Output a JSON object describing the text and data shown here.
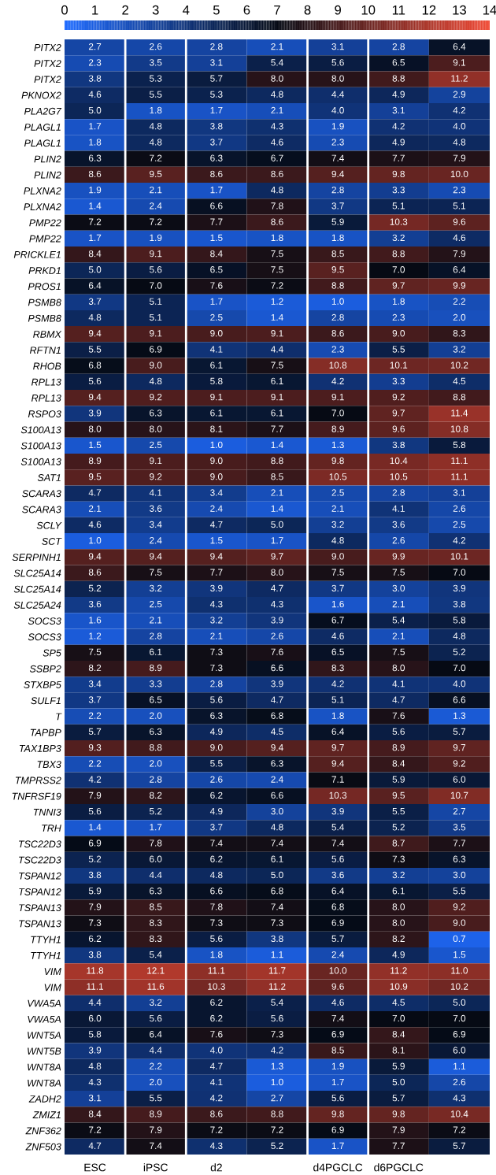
{
  "chart_data": {
    "type": "heatmap",
    "categories": [
      "ESC",
      "iPSC",
      "d2",
      null,
      "d4PGCLC",
      "d6PGCLC",
      null
    ],
    "clim": [
      0,
      14
    ],
    "cticks": [
      0,
      1,
      2,
      3,
      4,
      5,
      6,
      7,
      8,
      9,
      10,
      11,
      12,
      13,
      14
    ],
    "y_categories": [
      "PITX2",
      "PITX2",
      "PITX2",
      "PKNOX2",
      "PLA2G7",
      "PLAGL1",
      "PLAGL1",
      "PLIN2",
      "PLIN2",
      "PLXNA2",
      "PLXNA2",
      "PMP22",
      "PMP22",
      "PRICKLE1",
      "PRKD1",
      "PROS1",
      "PSMB8",
      "PSMB8",
      "RBMX",
      "RFTN1",
      "RHOB",
      "RPL13",
      "RPL13",
      "RSPO3",
      "S100A13",
      "S100A13",
      "S100A13",
      "SAT1",
      "SCARA3",
      "SCARA3",
      "SCLY",
      "SCT",
      "SERPINH1",
      "SLC25A14",
      "SLC25A14",
      "SLC25A24",
      "SOCS3",
      "SOCS3",
      "SP5",
      "SSBP2",
      "STXBP5",
      "SULF1",
      "T",
      "TAPBP",
      "TAX1BP3",
      "TBX3",
      "TMPRSS2",
      "TNFRSF19",
      "TNNI3",
      "TRH",
      "TSC22D3",
      "TSC22D3",
      "TSPAN12",
      "TSPAN12",
      "TSPAN13",
      "TSPAN13",
      "TTYH1",
      "TTYH1",
      "VIM",
      "VIM",
      "VWA5A",
      "VWA5A",
      "WNT5A",
      "WNT5B",
      "WNT8A",
      "WNT8A",
      "ZADH2",
      "ZMIZ1",
      "ZNF362",
      "ZNF503"
    ],
    "cells": [
      [
        2.7,
        2.6,
        2.8,
        2.1,
        3.1,
        2.8,
        6.4
      ],
      [
        2.3,
        3.5,
        3.1,
        5.4,
        5.6,
        6.5,
        9.1
      ],
      [
        3.8,
        5.3,
        5.7,
        8.0,
        8.0,
        8.8,
        11.2
      ],
      [
        4.6,
        5.5,
        5.3,
        4.8,
        4.4,
        4.9,
        2.9
      ],
      [
        5.0,
        1.8,
        1.7,
        2.1,
        4.0,
        3.1,
        4.2
      ],
      [
        1.7,
        4.8,
        3.8,
        4.3,
        1.9,
        4.2,
        4.0
      ],
      [
        1.8,
        4.8,
        3.7,
        4.6,
        2.3,
        4.9,
        4.8
      ],
      [
        6.3,
        7.2,
        6.3,
        6.7,
        7.4,
        7.7,
        7.9
      ],
      [
        8.6,
        9.5,
        8.6,
        8.6,
        9.4,
        9.8,
        10.0
      ],
      [
        1.9,
        2.1,
        1.7,
        4.8,
        2.8,
        3.3,
        2.3
      ],
      [
        1.4,
        2.4,
        6.6,
        7.8,
        3.7,
        5.1,
        5.1
      ],
      [
        7.2,
        7.2,
        7.7,
        8.6,
        5.9,
        10.3,
        9.6
      ],
      [
        1.7,
        1.9,
        1.5,
        1.8,
        1.8,
        3.2,
        4.6
      ],
      [
        8.4,
        9.1,
        8.4,
        7.5,
        8.5,
        8.8,
        7.9
      ],
      [
        5.0,
        5.6,
        6.5,
        7.5,
        9.5,
        7.0,
        6.4
      ],
      [
        6.4,
        7.0,
        7.6,
        7.2,
        8.8,
        9.7,
        9.9
      ],
      [
        3.7,
        5.1,
        1.7,
        1.2,
        1.0,
        1.8,
        2.2
      ],
      [
        4.8,
        5.1,
        2.5,
        1.4,
        2.8,
        2.3,
        2.0
      ],
      [
        9.4,
        9.1,
        9.0,
        9.1,
        8.6,
        9.0,
        8.3
      ],
      [
        5.5,
        6.9,
        4.1,
        4.4,
        2.3,
        5.5,
        3.2
      ],
      [
        6.8,
        9.0,
        6.1,
        7.5,
        10.8,
        10.1,
        10.2
      ],
      [
        5.6,
        4.8,
        5.8,
        6.1,
        4.2,
        3.3,
        4.5
      ],
      [
        9.4,
        9.2,
        9.1,
        9.1,
        9.1,
        9.2,
        8.8
      ],
      [
        3.9,
        6.3,
        6.1,
        6.1,
        7.0,
        9.7,
        11.4
      ],
      [
        8.0,
        8.0,
        8.1,
        7.7,
        8.9,
        9.6,
        10.8
      ],
      [
        1.5,
        2.5,
        1.0,
        1.4,
        1.3,
        3.8,
        5.8
      ],
      [
        8.9,
        9.1,
        9.0,
        8.8,
        9.8,
        10.4,
        11.1
      ],
      [
        9.5,
        9.2,
        9.0,
        8.5,
        10.5,
        10.5,
        11.1
      ],
      [
        4.7,
        4.1,
        3.4,
        2.1,
        2.5,
        2.8,
        3.1
      ],
      [
        2.1,
        3.6,
        2.4,
        1.4,
        2.1,
        4.1,
        2.6
      ],
      [
        4.6,
        3.4,
        4.7,
        5.0,
        3.2,
        3.6,
        2.5
      ],
      [
        1.0,
        2.4,
        1.5,
        1.7,
        4.8,
        2.6,
        4.2
      ],
      [
        9.4,
        9.4,
        9.4,
        9.7,
        9.0,
        9.9,
        10.1
      ],
      [
        8.6,
        7.5,
        7.7,
        8.0,
        7.5,
        7.5,
        7.0
      ],
      [
        5.2,
        3.2,
        3.9,
        4.7,
        3.7,
        3.0,
        3.9
      ],
      [
        3.6,
        2.5,
        4.3,
        4.3,
        1.6,
        2.1,
        3.8
      ],
      [
        1.6,
        2.1,
        3.2,
        3.9,
        6.7,
        5.4,
        5.8
      ],
      [
        1.2,
        2.8,
        2.1,
        2.6,
        4.6,
        2.1,
        4.8
      ],
      [
        7.5,
        6.1,
        7.3,
        7.6,
        6.5,
        7.5,
        5.2
      ],
      [
        8.2,
        8.9,
        7.3,
        6.6,
        8.3,
        8.0,
        7.0
      ],
      [
        3.4,
        3.3,
        2.8,
        3.9,
        4.2,
        4.1,
        4.0
      ],
      [
        3.7,
        6.5,
        5.6,
        4.7,
        5.1,
        4.7,
        6.6
      ],
      [
        2.2,
        2.0,
        6.3,
        6.8,
        1.8,
        7.6,
        1.3
      ],
      [
        5.7,
        6.3,
        4.9,
        4.5,
        6.4,
        5.6,
        5.7
      ],
      [
        9.3,
        8.8,
        9.0,
        9.4,
        9.7,
        8.9,
        9.7
      ],
      [
        2.2,
        2.0,
        5.5,
        6.3,
        9.4,
        8.4,
        9.2
      ],
      [
        4.2,
        2.8,
        2.6,
        2.4,
        7.1,
        5.9,
        6.0
      ],
      [
        7.9,
        8.2,
        6.2,
        6.6,
        10.3,
        9.5,
        10.7
      ],
      [
        5.6,
        5.2,
        4.9,
        3.0,
        3.9,
        5.5,
        2.7
      ],
      [
        1.4,
        1.7,
        3.7,
        4.8,
        5.4,
        5.2,
        3.5
      ],
      [
        6.9,
        7.8,
        7.4,
        7.4,
        7.4,
        8.7,
        7.7
      ],
      [
        5.2,
        6.0,
        6.2,
        6.1,
        5.6,
        7.3,
        6.3
      ],
      [
        3.8,
        4.4,
        4.8,
        5.0,
        3.6,
        3.2,
        3.0
      ],
      [
        5.9,
        6.3,
        6.6,
        6.8,
        6.4,
        6.1,
        5.5
      ],
      [
        7.9,
        8.5,
        7.8,
        7.4,
        6.8,
        8.0,
        9.2
      ],
      [
        7.3,
        8.3,
        7.3,
        7.3,
        6.9,
        8.0,
        9.0
      ],
      [
        6.2,
        8.3,
        5.6,
        3.8,
        5.7,
        8.2,
        0.7
      ],
      [
        3.8,
        5.4,
        1.8,
        1.1,
        2.4,
        4.9,
        1.5
      ],
      [
        11.8,
        12.1,
        11.1,
        11.7,
        10.0,
        11.2,
        11.0
      ],
      [
        11.1,
        11.6,
        10.3,
        11.2,
        9.6,
        10.9,
        10.2
      ],
      [
        4.4,
        3.2,
        6.2,
        5.4,
        4.6,
        4.5,
        5.0
      ],
      [
        6.0,
        5.6,
        6.2,
        5.6,
        7.4,
        7.0,
        7.0
      ],
      [
        5.8,
        6.4,
        7.6,
        7.3,
        6.9,
        8.4,
        6.9
      ],
      [
        3.9,
        4.4,
        4.0,
        4.2,
        8.5,
        8.1,
        6.0
      ],
      [
        4.8,
        2.2,
        4.7,
        1.3,
        1.9,
        5.9,
        1.1
      ],
      [
        4.3,
        2.0,
        4.1,
        1.0,
        1.7,
        5.0,
        2.6
      ],
      [
        3.1,
        5.5,
        4.2,
        2.7,
        5.6,
        5.7,
        4.3
      ],
      [
        8.4,
        8.9,
        8.6,
        8.8,
        9.8,
        9.8,
        10.4
      ],
      [
        7.2,
        7.9,
        7.2,
        7.2,
        6.9,
        7.9,
        7.2
      ],
      [
        4.7,
        7.4,
        4.3,
        5.2,
        1.7,
        7.7,
        5.7
      ]
    ],
    "cell_labels": [
      [
        "2.7",
        "2.6",
        "2.8",
        "2.1",
        "3.1",
        "2.8",
        "6.4"
      ],
      [
        "2.3",
        "3.5",
        "3.1",
        "5.4",
        "5.6",
        "6.5",
        "9.1"
      ],
      [
        "3.8",
        "5.3",
        "5.7",
        "8.0",
        "8.0",
        "8.8",
        "11.2"
      ],
      [
        "4.6",
        "5.5",
        "5.3",
        "4.8",
        "4.4",
        "4.9",
        "2.9"
      ],
      [
        "5.0",
        "1.8",
        "1.7",
        "2.1",
        "4.0",
        "3.1",
        "4.2"
      ],
      [
        "1.7",
        "4.8",
        "3.8",
        "4.3",
        "1.9",
        "4.2",
        "4.0"
      ],
      [
        "1.8",
        "4.8",
        "3.7",
        "4.6",
        "2.3",
        "4.9",
        "4.8"
      ],
      [
        "6.3",
        "7.2",
        "6.3",
        "6.7",
        "7.4",
        "7.7",
        "7.9"
      ],
      [
        "8.6",
        "9.5",
        "8.6",
        "8.6",
        "9.4",
        "9.8",
        "10.0"
      ],
      [
        "1.9",
        "2.1",
        "1.7",
        "4.8",
        "2.8",
        "3.3",
        "2.3"
      ],
      [
        "1.4",
        "2.4",
        "6.6",
        "7.8",
        "3.7",
        "5.1",
        "5.1"
      ],
      [
        "7.2",
        "7.2",
        "7.7",
        "8.6",
        "5.9",
        "10.3",
        "9.6"
      ],
      [
        "1.7",
        "1.9",
        "1.5",
        "1.8",
        "1.8",
        "3.2",
        "4.6"
      ],
      [
        "8.4",
        "9.1",
        "8.4",
        "7.5",
        "8.5",
        "8.8",
        "7.9"
      ],
      [
        "5.0",
        "5.6",
        "6.5",
        "7.5",
        "9.5",
        "7.0",
        "6.4"
      ],
      [
        "6.4",
        "7.0",
        "7.6",
        "7.2",
        "8.8",
        "9.7",
        "9.9"
      ],
      [
        "3.7",
        "5.1",
        "1.7",
        "1.2",
        "1.0",
        "1.8",
        "2.2"
      ],
      [
        "4.8",
        "5.1",
        "2.5",
        "1.4",
        "2.8",
        "2.3",
        "2.0"
      ],
      [
        "9.4",
        "9.1",
        "9.0",
        "9.1",
        "8.6",
        "9.0",
        "8.3"
      ],
      [
        "5.5",
        "6.9",
        "4.1",
        "4.4",
        "2.3",
        "5.5",
        "3.2"
      ],
      [
        "6.8",
        "9.0",
        "6.1",
        "7.5",
        "10.8",
        "10.1",
        "10.2"
      ],
      [
        "5.6",
        "4.8",
        "5.8",
        "6.1",
        "4.2",
        "3.3",
        "4.5"
      ],
      [
        "9.4",
        "9.2",
        "9.1",
        "9.1",
        "9.1",
        "9.2",
        "8.8"
      ],
      [
        "3.9",
        "6.3",
        "6.1",
        "6.1",
        "7.0",
        "9.7",
        "11.4"
      ],
      [
        "8.0",
        "8.0",
        "8.1",
        "7.7",
        "8.9",
        "9.6",
        "10.8"
      ],
      [
        "1.5",
        "2.5",
        "1.0",
        "1.4",
        "1.3",
        "3.8",
        "5.8"
      ],
      [
        "8.9",
        "9.1",
        "9.0",
        "8.8",
        "9.8",
        "10.4",
        "11.1"
      ],
      [
        "9.5",
        "9.2",
        "9.0",
        "8.5",
        "10.5",
        "10.5",
        "11.1"
      ],
      [
        "4.7",
        "4.1",
        "3.4",
        "2.1",
        "2.5",
        "2.8",
        "3.1"
      ],
      [
        "2.1",
        "3.6",
        "2.4",
        "1.4",
        "2.1",
        "4.1",
        "2.6"
      ],
      [
        "4.6",
        "3.4",
        "4.7",
        "5.0",
        "3.2",
        "3.6",
        "2.5"
      ],
      [
        "1.0",
        "2.4",
        "1.5",
        "1.7",
        "4.8",
        "2.6",
        "4.2"
      ],
      [
        "9.4",
        "9.4",
        "9.4",
        "9.7",
        "9.0",
        "9.9",
        "10.1"
      ],
      [
        "8.6",
        "7.5",
        "7.7",
        "8.0",
        "7.5",
        "7.5",
        "7.0"
      ],
      [
        "5.2",
        "3.2",
        "3.9",
        "4.7",
        "3.7",
        "3.0",
        "3.9"
      ],
      [
        "3.6",
        "2.5",
        "4.3",
        "4.3",
        "1.6",
        "2.1",
        "3.8"
      ],
      [
        "1.6",
        "2.1",
        "3.2",
        "3.9",
        "6.7",
        "5.4",
        "5.8"
      ],
      [
        "1.2",
        "2.8",
        "2.1",
        "2.6",
        "4.6",
        "2.1",
        "4.8"
      ],
      [
        "7.5",
        "6.1",
        "7.3",
        "7.6",
        "6.5",
        "7.5",
        "5.2"
      ],
      [
        "8.2",
        "8.9",
        "7.3",
        "6.6",
        "8.3",
        "8.0",
        "7.0"
      ],
      [
        "3.4",
        "3.3",
        "2.8",
        "3.9",
        "4.2",
        "4.1",
        "4.0"
      ],
      [
        "3.7",
        "6.5",
        "5.6",
        "4.7",
        "5.1",
        "4.7",
        "6.6"
      ],
      [
        "2.2",
        "2.0",
        "6.3",
        "6.8",
        "1.8",
        "7.6",
        "1.3"
      ],
      [
        "5.7",
        "6.3",
        "4.9",
        "4.5",
        "6.4",
        "5.6",
        "5.7"
      ],
      [
        "9.3",
        "8.8",
        "9.0",
        "9.4",
        "9.7",
        "8.9",
        "9.7"
      ],
      [
        "2.2",
        "2.0",
        "5.5",
        "6.3",
        "9.4",
        "8.4",
        "9.2"
      ],
      [
        "4.2",
        "2.8",
        "2.6",
        "2.4",
        "7.1",
        "5.9",
        "6.0"
      ],
      [
        "7.9",
        "8.2",
        "6.2",
        "6.6",
        "10.3",
        "9.5",
        "10.7"
      ],
      [
        "5.6",
        "5.2",
        "4.9",
        "3.0",
        "3.9",
        "5.5",
        "2.7"
      ],
      [
        "1.4",
        "1.7",
        "3.7",
        "4.8",
        "5.4",
        "5.2",
        "3.5"
      ],
      [
        "6.9",
        "7.8",
        "7.4",
        "7.4",
        "7.4",
        "8.7",
        "7.7"
      ],
      [
        "5.2",
        "6.0",
        "6.2",
        "6.1",
        "5.6",
        "7.3",
        "6.3"
      ],
      [
        "3.8",
        "4.4",
        "4.8",
        "5.0",
        "3.6",
        "3.2",
        "3.0"
      ],
      [
        "5.9",
        "6.3",
        "6.6",
        "6.8",
        "6.4",
        "6.1",
        "5.5"
      ],
      [
        "7.9",
        "8.5",
        "7.8",
        "7.4",
        "6.8",
        "8.0",
        "9.2"
      ],
      [
        "7.3",
        "8.3",
        "7.3",
        "7.3",
        "6.9",
        "8.0",
        "9.0"
      ],
      [
        "6.2",
        "8.3",
        "5.6",
        "3.8",
        "5.7",
        "8.2",
        "0.7"
      ],
      [
        "3.8",
        "5.4",
        "1.8",
        "1.1",
        "2.4",
        "4.9",
        "1.5"
      ],
      [
        "11.8",
        "12.1",
        "11.1",
        "11.7",
        "10.0",
        "11.2",
        "11.0"
      ],
      [
        "11.1",
        "11.6",
        "10.3",
        "11.2",
        "9.6",
        "10.9",
        "10.2"
      ],
      [
        "4.4",
        "3.2",
        "6.2",
        "5.4",
        "4.6",
        "4.5",
        "5.0"
      ],
      [
        "6.0",
        "5.6",
        "6.2",
        "5.6",
        "7.4",
        "7.0",
        "7.0"
      ],
      [
        "5.8",
        "6.4",
        "7.6",
        "7.3",
        "6.9",
        "8.4",
        "6.9"
      ],
      [
        "3.9",
        "4.4",
        "4.0",
        "4.2",
        "8.5",
        "8.1",
        "6.0"
      ],
      [
        "4.8",
        "2.2",
        "4.7",
        "1.3",
        "1.9",
        "5.9",
        "1.1"
      ],
      [
        "4.3",
        "2.0",
        "4.1",
        "1.0",
        "1.7",
        "5.0",
        "2.6"
      ],
      [
        "3.1",
        "5.5",
        "4.2",
        "2.7",
        "5.6",
        "5.7",
        "4.3"
      ],
      [
        "8.4",
        "8.9",
        "8.6",
        "8.8",
        "9.8",
        "9.8",
        "10.4"
      ],
      [
        "7.2",
        "7.9",
        "7.2",
        "7.2",
        "6.9",
        "7.9",
        "7.2"
      ],
      [
        "4.7",
        "7.4",
        "4.3",
        "5.2",
        "1.7",
        "7.7",
        "5.7"
      ]
    ]
  }
}
